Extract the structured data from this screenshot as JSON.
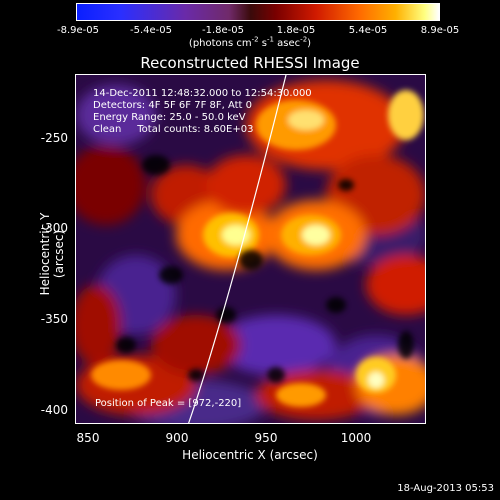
{
  "colorbar": {
    "tick_labels": [
      "-8.9e-05",
      "-5.4e-05",
      "-1.8e-05",
      "1.8e-05",
      "5.4e-05",
      "8.9e-05"
    ],
    "units_main": "(photons cm",
    "units_exp1": "-2",
    "units_mid1": " s",
    "units_exp2": "-1",
    "units_mid2": " asec",
    "units_exp3": "-2",
    "units_end": ")"
  },
  "title": "Reconstructed RHESSI Image",
  "info": {
    "line1": "14-Dec-2011 12:48:32.000 to 12:54:30.000",
    "line2": "Detectors: 4F 5F 6F 7F 8F, Att 0",
    "line3": "Energy Range: 25.0 - 50.0 keV",
    "line4": "Clean     Total counts: 8.60E+03"
  },
  "peak_text": "Position of Peak = [972,-220]",
  "axes": {
    "xlabel": "Heliocentric X (arcsec)",
    "ylabel": "Heliocentric Y (arcsec)",
    "xticks": [
      "850",
      "900",
      "950",
      "1000"
    ],
    "yticks": [
      "-250",
      "-300",
      "-350",
      "-400"
    ]
  },
  "timestamp": "18-Aug-2013 05:53",
  "colors": {
    "background": "#000000",
    "limb_line": "#ffffff"
  }
}
